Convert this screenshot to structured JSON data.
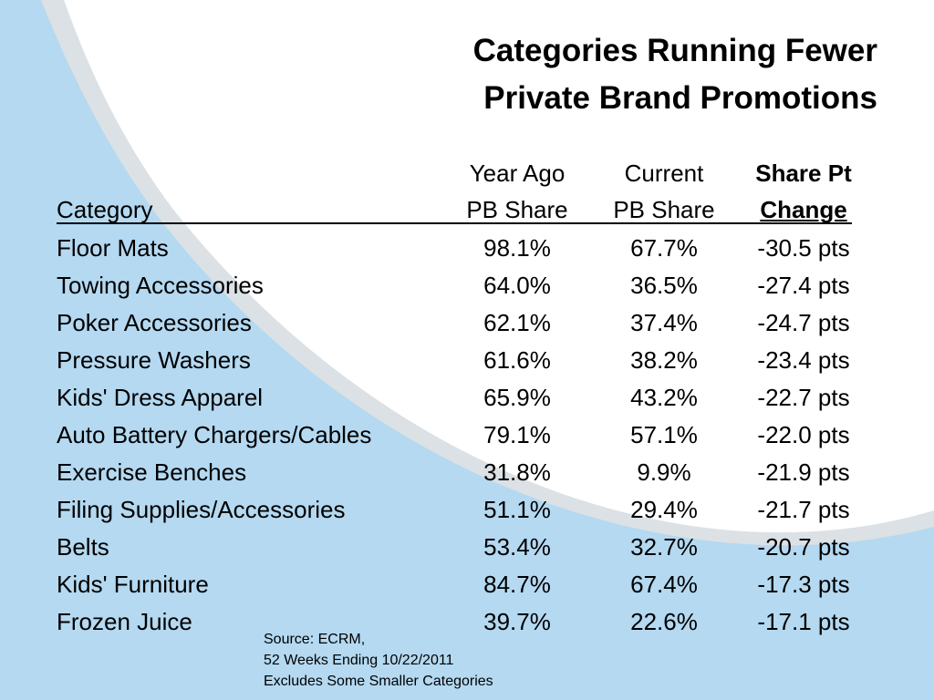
{
  "title": {
    "line1": "Categories Running Fewer",
    "line2": "Private Brand Promotions"
  },
  "headers": {
    "category": "Category",
    "year_ago": {
      "line1": "Year Ago",
      "line2": "PB Share"
    },
    "current": {
      "line1": "Current",
      "line2": "PB Share"
    },
    "change": {
      "line1": "Share Pt",
      "line2": "Change"
    }
  },
  "rows": [
    {
      "category": "Floor Mats",
      "year_ago": "98.1%",
      "current": "67.7%",
      "change": "-30.5 pts"
    },
    {
      "category": "Towing Accessories",
      "year_ago": "64.0%",
      "current": "36.5%",
      "change": "-27.4 pts"
    },
    {
      "category": "Poker Accessories",
      "year_ago": "62.1%",
      "current": "37.4%",
      "change": "-24.7 pts"
    },
    {
      "category": "Pressure Washers",
      "year_ago": "61.6%",
      "current": "38.2%",
      "change": "-23.4 pts"
    },
    {
      "category": "Kids' Dress Apparel",
      "year_ago": "65.9%",
      "current": "43.2%",
      "change": "-22.7 pts"
    },
    {
      "category": "Auto Battery Chargers/Cables",
      "year_ago": "79.1%",
      "current": "57.1%",
      "change": "-22.0 pts"
    },
    {
      "category": "Exercise Benches",
      "year_ago": "31.8%",
      "current": "9.9%",
      "change": "-21.9 pts"
    },
    {
      "category": "Filing Supplies/Accessories",
      "year_ago": "51.1%",
      "current": "29.4%",
      "change": "-21.7 pts"
    },
    {
      "category": "Belts",
      "year_ago": "53.4%",
      "current": "32.7%",
      "change": "-20.7 pts"
    },
    {
      "category": "Kids' Furniture",
      "year_ago": "84.7%",
      "current": "67.4%",
      "change": "-17.3 pts"
    },
    {
      "category": "Frozen Juice",
      "year_ago": "39.7%",
      "current": "22.6%",
      "change": "-17.1 pts"
    }
  ],
  "source": {
    "line1": "Source:  ECRM,",
    "line2": "52 Weeks Ending 10/22/2011",
    "line3": "Excludes Some Smaller Categories"
  },
  "colors": {
    "background_wave": "#b4d9f1",
    "wave_edge": "#dcdcdc"
  }
}
